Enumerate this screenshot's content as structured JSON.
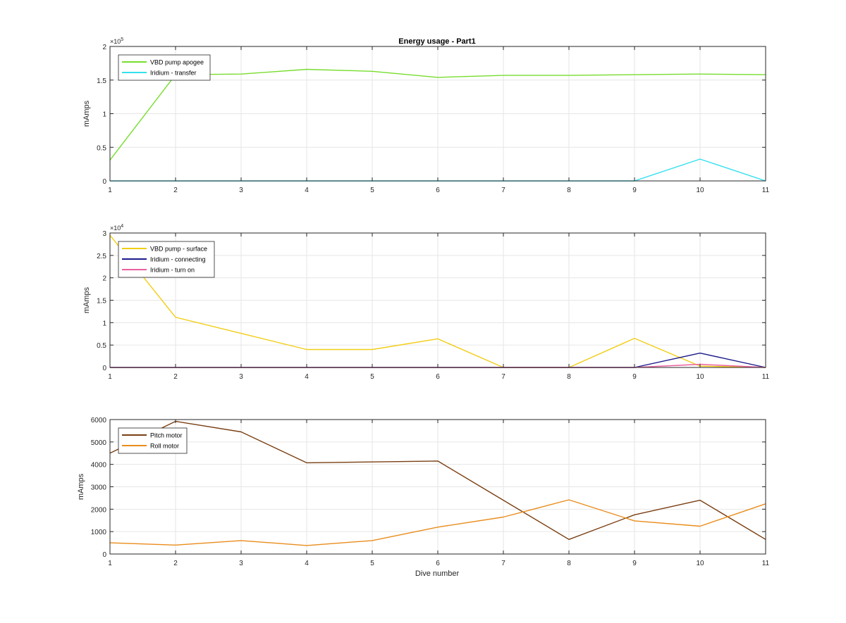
{
  "figure": {
    "title": "Energy usage - Part1",
    "xlabel": "Dive number"
  },
  "chart_data": [
    {
      "type": "line",
      "title": "Energy usage - Part1",
      "xlabel": "",
      "ylabel": "mAmps",
      "x": [
        1,
        2,
        3,
        4,
        5,
        6,
        7,
        8,
        9,
        10,
        11
      ],
      "xlim": [
        1,
        11
      ],
      "ylim": [
        0,
        200000
      ],
      "yticks": [
        0,
        50000,
        100000,
        150000,
        200000
      ],
      "ytick_labels": [
        "0",
        "0.5",
        "1",
        "1.5",
        "2"
      ],
      "exponent": "5",
      "grid": true,
      "legend_position": "top-left",
      "series": [
        {
          "name": "VBD pump apogee",
          "color": "#77dd2e",
          "values": [
            31000,
            158000,
            159000,
            166000,
            163000,
            154000,
            157000,
            157000,
            158000,
            159000,
            158000
          ]
        },
        {
          "name": "Iridium - transfer",
          "color": "#33e0ee",
          "values": [
            0,
            0,
            0,
            0,
            0,
            0,
            0,
            0,
            0,
            32500,
            0
          ]
        }
      ]
    },
    {
      "type": "line",
      "title": "",
      "xlabel": "",
      "ylabel": "mAmps",
      "x": [
        1,
        2,
        3,
        4,
        5,
        6,
        7,
        8,
        9,
        10,
        11
      ],
      "xlim": [
        1,
        11
      ],
      "ylim": [
        0,
        30000
      ],
      "yticks": [
        0,
        5000,
        10000,
        15000,
        20000,
        25000,
        30000
      ],
      "ytick_labels": [
        "0",
        "0.5",
        "1",
        "1.5",
        "2",
        "2.5",
        "3"
      ],
      "exponent": "4",
      "grid": true,
      "legend_position": "top-left",
      "series": [
        {
          "name": "VBD pump - surface",
          "color": "#f2cd15",
          "values": [
            29500,
            11200,
            7600,
            4000,
            4000,
            6400,
            0,
            0,
            6500,
            300,
            0
          ]
        },
        {
          "name": "Iridium - connecting",
          "color": "#1a1a8c",
          "values": [
            0,
            0,
            0,
            0,
            0,
            0,
            0,
            0,
            0,
            3200,
            0
          ]
        },
        {
          "name": "Iridium - turn on",
          "color": "#e8609e",
          "values": [
            0,
            0,
            0,
            0,
            0,
            0,
            0,
            0,
            0,
            700,
            0
          ]
        }
      ]
    },
    {
      "type": "line",
      "title": "",
      "xlabel": "Dive number",
      "ylabel": "mAmps",
      "x": [
        1,
        2,
        3,
        4,
        5,
        6,
        7,
        8,
        9,
        10,
        11
      ],
      "xlim": [
        1,
        11
      ],
      "ylim": [
        0,
        6000
      ],
      "yticks": [
        0,
        1000,
        2000,
        3000,
        4000,
        5000,
        6000
      ],
      "ytick_labels": [
        "0",
        "1000",
        "2000",
        "3000",
        "4000",
        "5000",
        "6000"
      ],
      "exponent": "",
      "grid": true,
      "legend_position": "top-left",
      "series": [
        {
          "name": "Pitch motor",
          "color": "#7a3f13",
          "values": [
            4500,
            5920,
            5450,
            4070,
            4110,
            4150,
            2400,
            650,
            1750,
            2400,
            650
          ]
        },
        {
          "name": "Roll motor",
          "color": "#e98c1c",
          "values": [
            500,
            400,
            600,
            380,
            600,
            1200,
            1650,
            2420,
            1480,
            1240,
            2240
          ]
        }
      ]
    }
  ]
}
